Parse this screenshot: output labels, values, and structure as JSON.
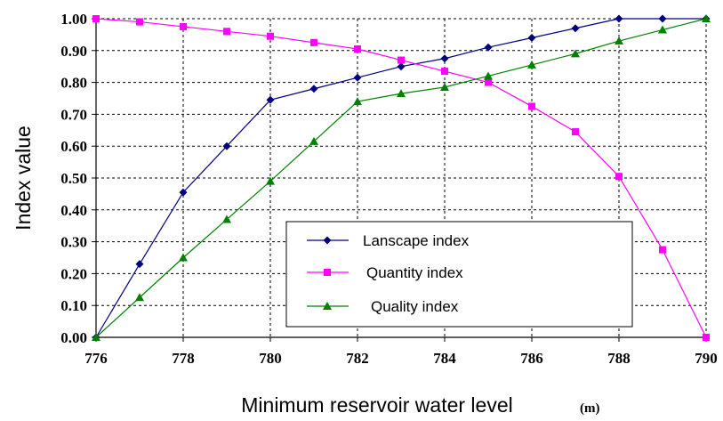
{
  "chart_data": {
    "type": "line",
    "xlabel": "Minimum reservoir water level",
    "x_unit": "(m)",
    "ylabel": "Index value",
    "x": [
      776,
      777,
      778,
      779,
      780,
      781,
      782,
      783,
      784,
      785,
      786,
      787,
      788,
      789,
      790
    ],
    "xlim": [
      776,
      790
    ],
    "ylim": [
      0,
      1
    ],
    "x_ticks": [
      "776",
      "778",
      "780",
      "782",
      "784",
      "786",
      "788",
      "790"
    ],
    "y_ticks": [
      "0.00",
      "0.10",
      "0.20",
      "0.30",
      "0.40",
      "0.50",
      "0.60",
      "0.70",
      "0.80",
      "0.90",
      "1.00"
    ],
    "grid": "dashed",
    "legend_position": "lower-center-right",
    "series": [
      {
        "name": "Lanscape index",
        "color": "#000080",
        "marker": "diamond",
        "values": [
          0.0,
          0.23,
          0.455,
          0.6,
          0.745,
          0.78,
          0.815,
          0.85,
          0.875,
          0.91,
          0.94,
          0.97,
          1.0,
          1.0,
          1.0
        ]
      },
      {
        "name": "Quantity index",
        "color": "#ff00ff",
        "marker": "square",
        "values": [
          1.0,
          0.99,
          0.975,
          0.96,
          0.945,
          0.925,
          0.905,
          0.87,
          0.835,
          0.8,
          0.725,
          0.645,
          0.505,
          0.275,
          0.0
        ]
      },
      {
        "name": "Quality index",
        "color": "#008000",
        "marker": "triangle",
        "values": [
          0.0,
          0.125,
          0.25,
          0.37,
          0.49,
          0.615,
          0.74,
          0.765,
          0.785,
          0.82,
          0.855,
          0.89,
          0.93,
          0.965,
          1.0
        ]
      }
    ]
  }
}
